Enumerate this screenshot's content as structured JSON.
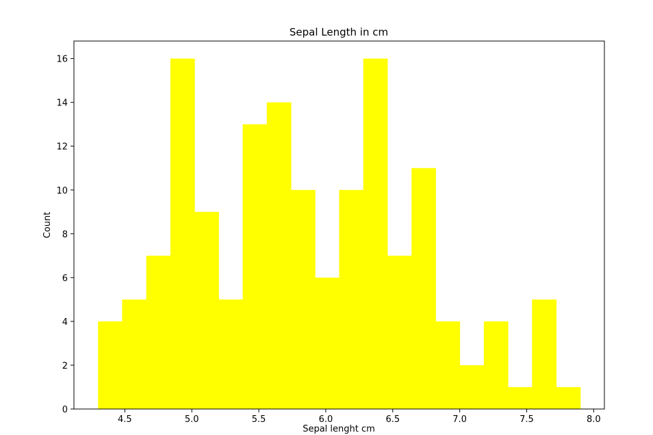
{
  "chart_data": {
    "type": "bar",
    "title": "Sepal Length in cm",
    "xlabel": "Sepal lenght cm",
    "ylabel": "Count",
    "bar_color": "#ffff00",
    "bin_range": [
      4.3,
      7.9
    ],
    "bins": 20,
    "values": [
      4,
      5,
      7,
      16,
      9,
      5,
      13,
      14,
      10,
      6,
      10,
      16,
      7,
      11,
      4,
      2,
      4,
      1,
      5,
      1
    ],
    "xlim": [
      4.12,
      8.08
    ],
    "ylim": [
      0,
      16.8
    ],
    "xticks": [
      4.5,
      5.0,
      5.5,
      6.0,
      6.5,
      7.0,
      7.5,
      8.0
    ],
    "xtick_labels": [
      "4.5",
      "5.0",
      "5.5",
      "6.0",
      "6.5",
      "7.0",
      "7.5",
      "8.0"
    ],
    "yticks": [
      0,
      2,
      4,
      6,
      8,
      10,
      12,
      14,
      16
    ],
    "ytick_labels": [
      "0",
      "2",
      "4",
      "6",
      "8",
      "10",
      "12",
      "14",
      "16"
    ],
    "grid": false,
    "legend": "none"
  }
}
